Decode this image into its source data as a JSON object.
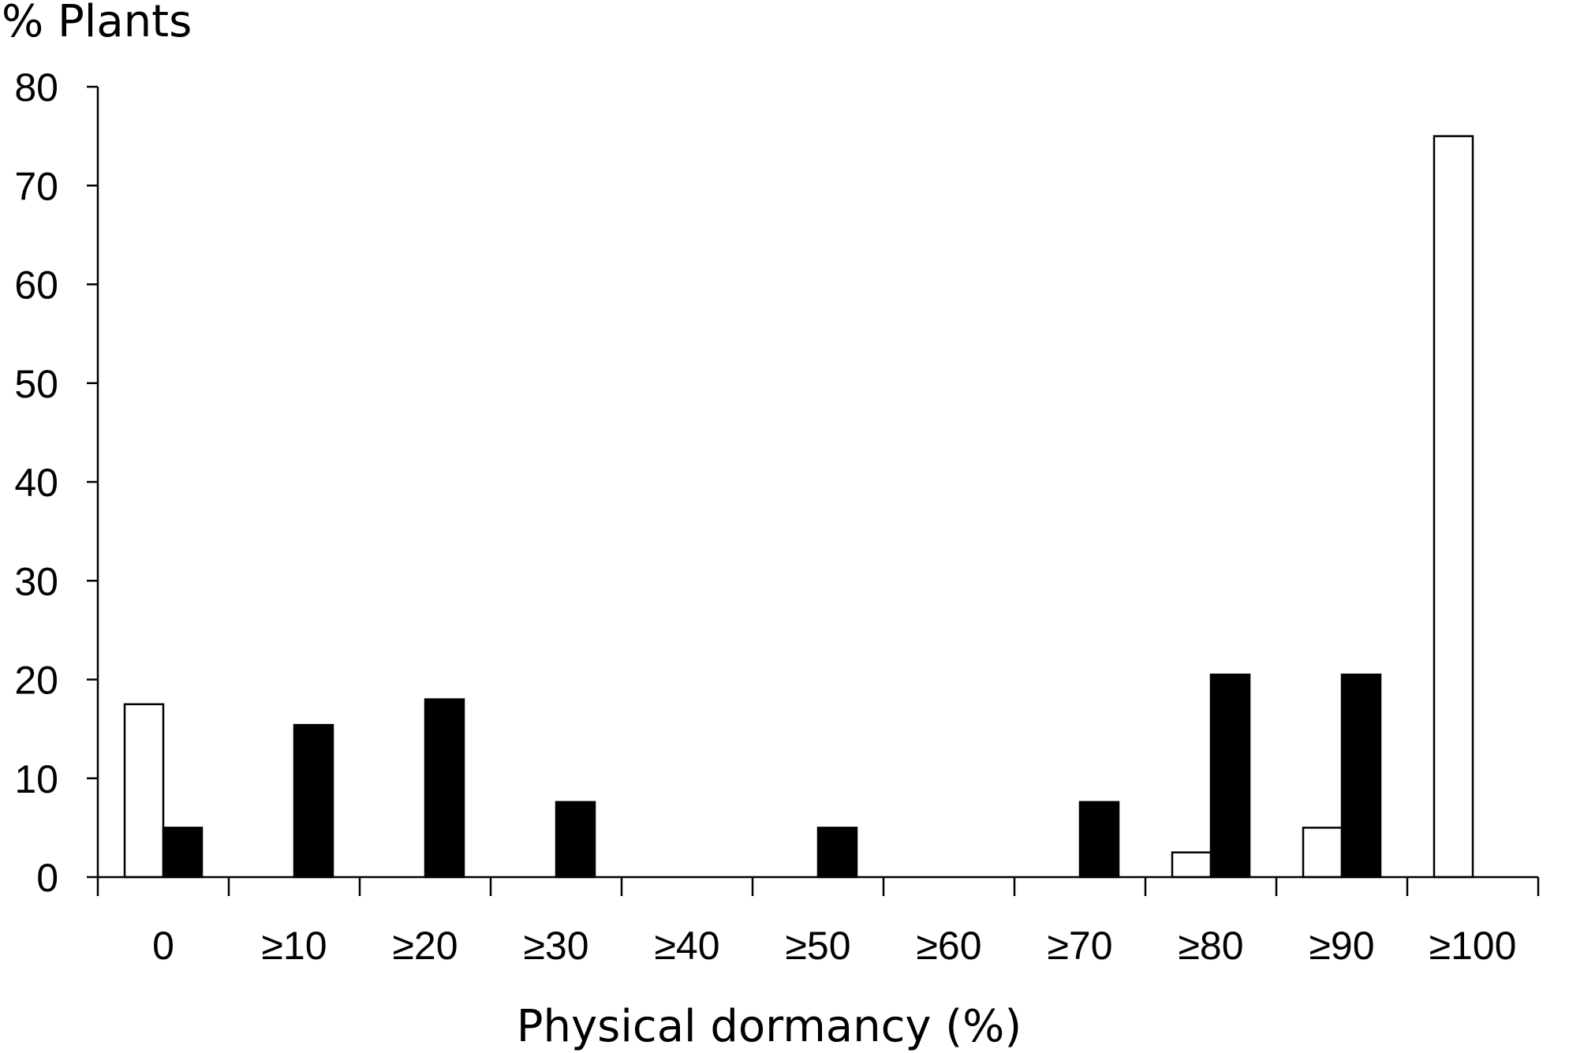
{
  "chart_data": {
    "type": "bar",
    "title": "",
    "xlabel": "Physical dormancy (%)",
    "ylabel": "% Plants",
    "categories": [
      "0",
      "≥10",
      "≥20",
      "≥30",
      "≥40",
      "≥50",
      "≥60",
      "≥70",
      "≥80",
      "≥90",
      "≥100"
    ],
    "series": [
      {
        "values": [
          17.5,
          0,
          0,
          0,
          0,
          0,
          0,
          0,
          2.5,
          5,
          75
        ],
        "color": "#ffffff"
      },
      {
        "values": [
          5,
          15.4,
          18,
          7.6,
          0,
          5,
          0,
          7.6,
          20.5,
          20.5,
          0
        ],
        "color": "#000000"
      }
    ],
    "ylim": [
      0,
      80
    ],
    "yticks": [
      0,
      10,
      20,
      30,
      40,
      50,
      60,
      70,
      80
    ],
    "grid": false,
    "legend": "none"
  }
}
